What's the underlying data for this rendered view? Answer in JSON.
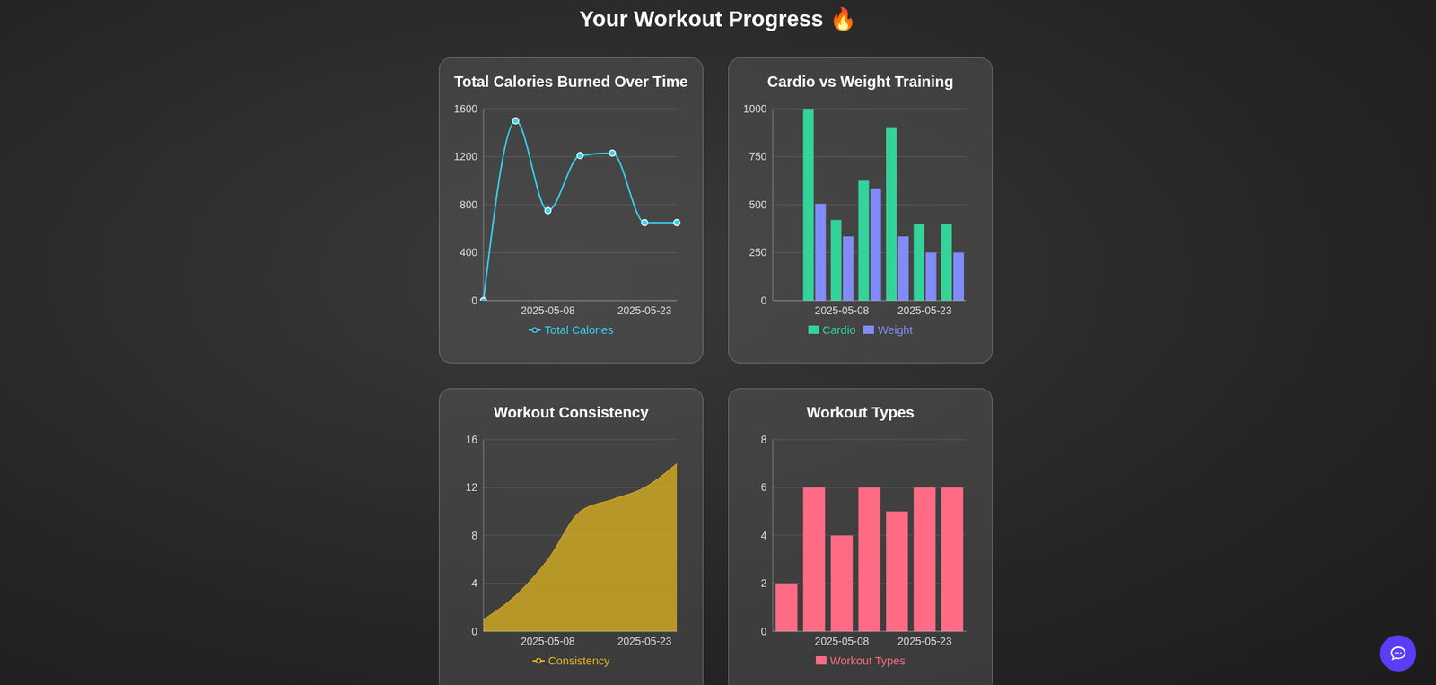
{
  "title": "Your Workout Progress 🔥",
  "chart_data": [
    {
      "type": "line",
      "title": "Total Calories Burned Over Time",
      "categories": [
        null,
        null,
        "2025-05-08",
        null,
        null,
        "2025-05-23",
        null
      ],
      "series": [
        {
          "name": "Total Calories",
          "color": "#36d1f0",
          "values": [
            0,
            1500,
            750,
            1210,
            1230,
            650,
            650
          ],
          "marker": "circle"
        }
      ],
      "ylim": [
        0,
        1600
      ],
      "yticks": [
        0,
        400,
        800,
        1200,
        1600
      ],
      "grid": true,
      "legend": "bottom"
    },
    {
      "type": "bar",
      "title": "Cardio vs Weight Training",
      "categories": [
        null,
        null,
        "2025-05-08",
        null,
        null,
        "2025-05-23",
        null
      ],
      "series": [
        {
          "name": "Cardio",
          "color": "#34d399",
          "values": [
            0,
            1000,
            420,
            625,
            900,
            400,
            400
          ]
        },
        {
          "name": "Weight",
          "color": "#818cf8",
          "values": [
            0,
            505,
            335,
            585,
            335,
            250,
            250
          ]
        }
      ],
      "ylim": [
        0,
        1000
      ],
      "yticks": [
        0,
        250,
        500,
        750,
        1000
      ],
      "grid": true,
      "legend": "bottom"
    },
    {
      "type": "area",
      "title": "Workout Consistency",
      "categories": [
        null,
        null,
        "2025-05-08",
        null,
        null,
        "2025-05-23",
        null
      ],
      "series": [
        {
          "name": "Consistency",
          "color": "#e0b422",
          "values": [
            1,
            3,
            6,
            10,
            11,
            12,
            14
          ]
        }
      ],
      "ylim": [
        0,
        16
      ],
      "yticks": [
        0,
        4,
        8,
        12,
        16
      ],
      "grid": true,
      "legend": "bottom"
    },
    {
      "type": "bar",
      "title": "Workout Types",
      "categories": [
        null,
        null,
        "2025-05-08",
        null,
        null,
        "2025-05-23",
        null
      ],
      "series": [
        {
          "name": "Workout Types",
          "color": "#ff6b84",
          "values": [
            2,
            6,
            4,
            6,
            5,
            6,
            6
          ]
        }
      ],
      "ylim": [
        0,
        8
      ],
      "yticks": [
        0,
        2,
        4,
        6,
        8
      ],
      "grid": true,
      "legend": "bottom"
    }
  ]
}
